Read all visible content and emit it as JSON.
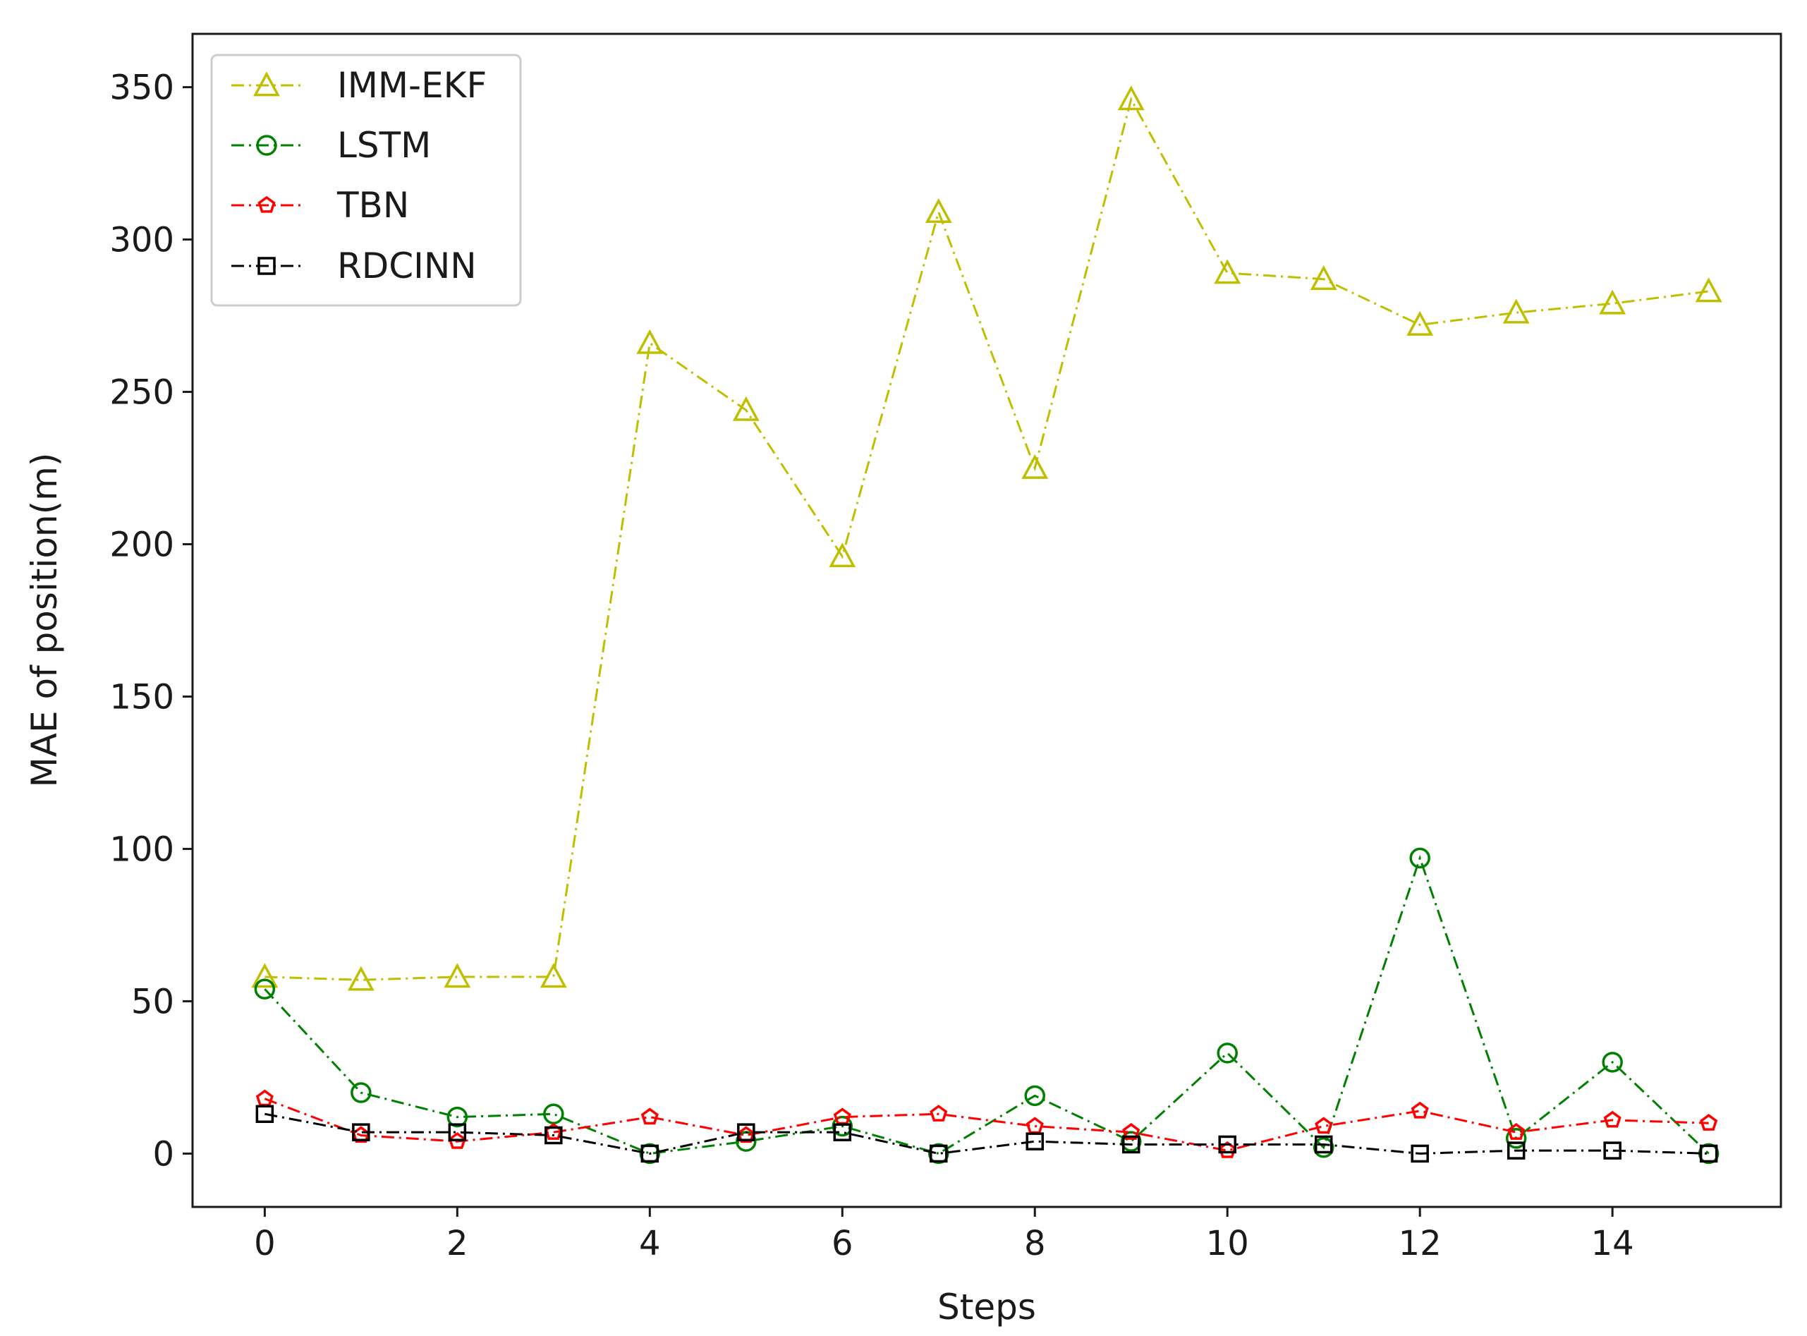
{
  "chart_data": {
    "type": "line",
    "title": "",
    "xlabel": "Steps",
    "ylabel": "MAE of position(m)",
    "xlim": [
      -0.75,
      15.75
    ],
    "ylim": [
      -17.5,
      367.5
    ],
    "xticks": [
      0,
      2,
      4,
      6,
      8,
      10,
      12,
      14
    ],
    "yticks": [
      0,
      50,
      100,
      150,
      200,
      250,
      300,
      350
    ],
    "grid": false,
    "legend_position": "top-left",
    "x": [
      0,
      1,
      2,
      3,
      4,
      5,
      6,
      7,
      8,
      9,
      10,
      11,
      12,
      13,
      14,
      15
    ],
    "series": [
      {
        "name": "IMM-EKF",
        "color": "#bfbf00",
        "marker": "triangle",
        "values": [
          58,
          57,
          58,
          58,
          266,
          244,
          196,
          309,
          225,
          346,
          289,
          287,
          272,
          276,
          279,
          283
        ]
      },
      {
        "name": "LSTM",
        "color": "#008000",
        "marker": "circle",
        "values": [
          54,
          20,
          12,
          13,
          0,
          4,
          9,
          0,
          19,
          4,
          33,
          2,
          97,
          5,
          30,
          0
        ]
      },
      {
        "name": "TBN",
        "color": "#ff0000",
        "marker": "pentagon",
        "values": [
          18,
          6,
          4,
          7,
          12,
          6,
          12,
          13,
          9,
          7,
          1,
          9,
          14,
          7,
          11,
          10
        ]
      },
      {
        "name": "RDCINN",
        "color": "#000000",
        "marker": "square",
        "values": [
          13,
          7,
          7,
          6,
          0,
          7,
          7,
          0,
          4,
          3,
          3,
          3,
          0,
          1,
          1,
          0
        ]
      }
    ]
  }
}
